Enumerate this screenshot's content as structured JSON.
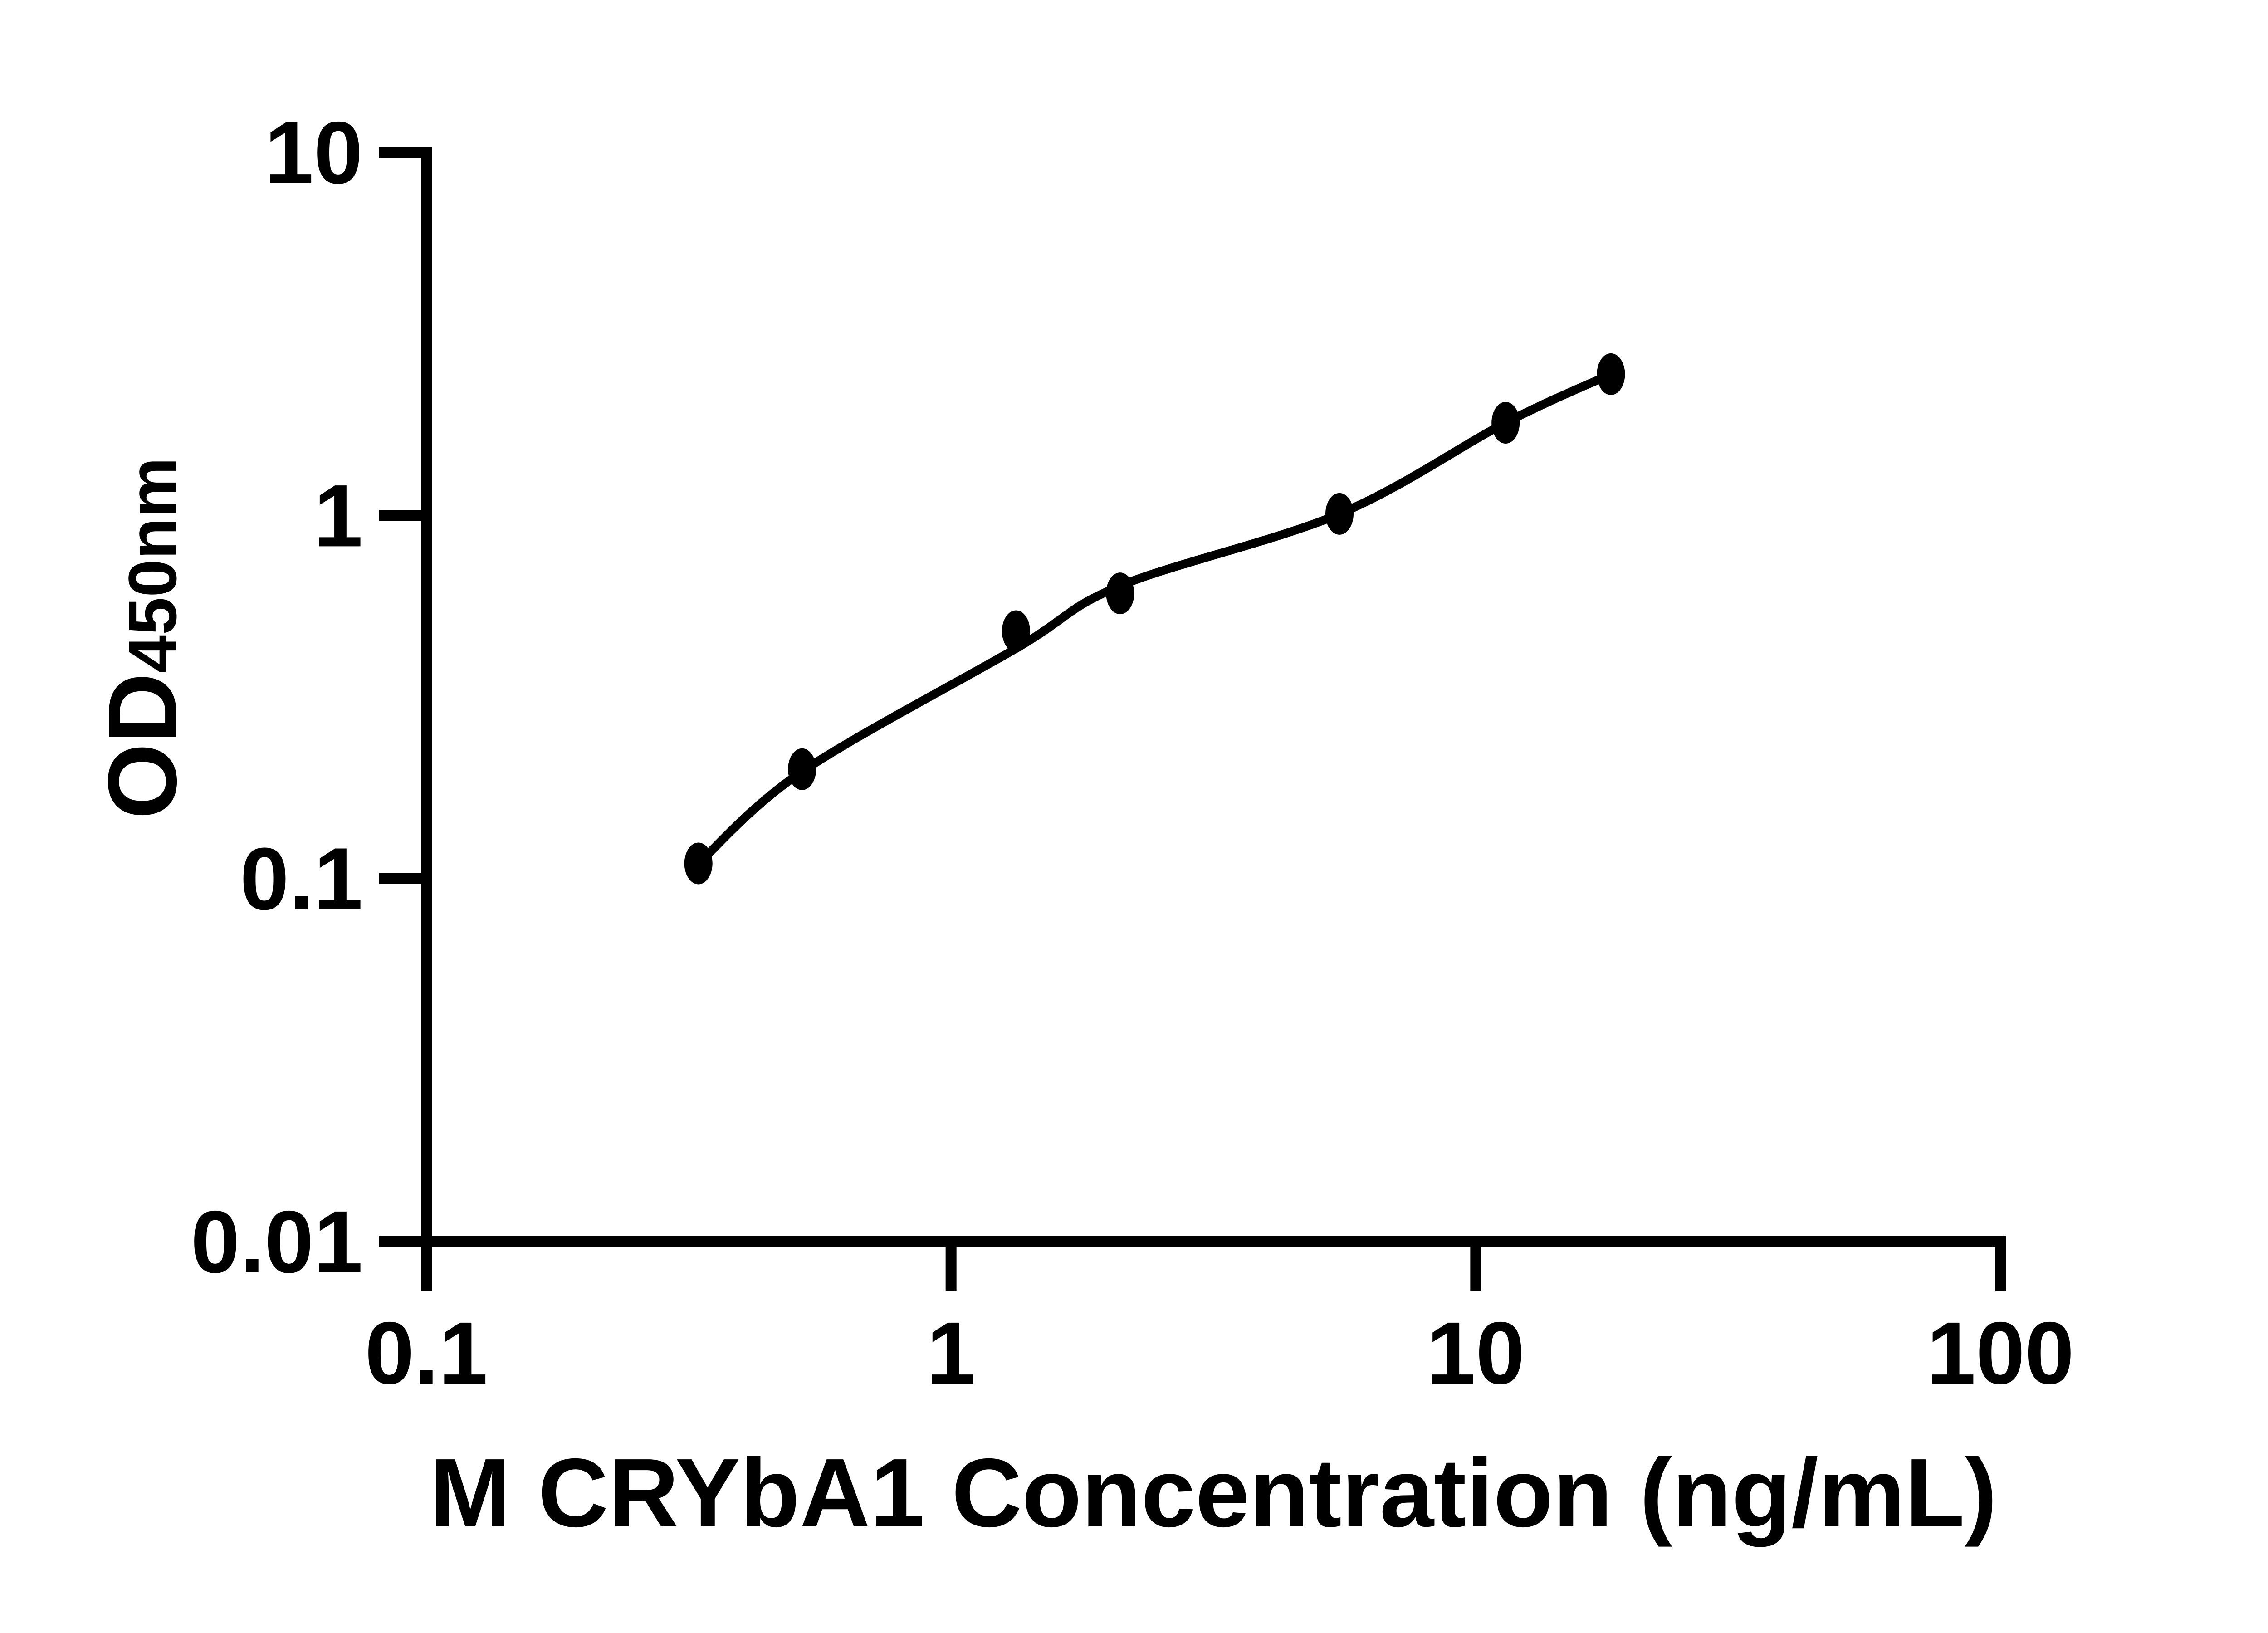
{
  "chart_data": {
    "type": "scatter",
    "title": "",
    "xlabel": "M CRYbA1 Concentration (ng/mL)",
    "ylabel_main": "OD",
    "ylabel_sub": "450nm",
    "x_scale": "log",
    "y_scale": "log",
    "xlim": [
      0.1,
      100
    ],
    "ylim": [
      0.01,
      10
    ],
    "x_ticks": [
      {
        "v": 0.1,
        "label": "0.1"
      },
      {
        "v": 1,
        "label": "1"
      },
      {
        "v": 10,
        "label": "10"
      },
      {
        "v": 100,
        "label": "100"
      }
    ],
    "y_ticks": [
      {
        "v": 10,
        "label": "10"
      },
      {
        "v": 1,
        "label": "1"
      },
      {
        "v": 0.1,
        "label": "0.1"
      },
      {
        "v": 0.01,
        "label": "0.01"
      }
    ],
    "grid": false,
    "legend": false,
    "colors": {
      "marker": "#000000",
      "line": "#000000",
      "axis": "#000000",
      "background": "#ffffff"
    },
    "series": [
      {
        "points": [
          {
            "x": 0.33,
            "y": 0.11
          },
          {
            "x": 0.52,
            "y": 0.2
          },
          {
            "x": 1.33,
            "y": 0.48
          },
          {
            "x": 2.1,
            "y": 0.61
          },
          {
            "x": 5.5,
            "y": 1.01
          },
          {
            "x": 11.4,
            "y": 1.8
          },
          {
            "x": 18.1,
            "y": 2.45
          }
        ]
      }
    ],
    "fit_curve_points": [
      [
        0.33,
        0.11
      ],
      [
        0.52,
        0.197
      ],
      [
        1.33,
        0.43
      ],
      [
        2.1,
        0.64
      ],
      [
        5.5,
        1.01
      ],
      [
        11.4,
        1.8
      ],
      [
        18.1,
        2.45
      ]
    ]
  }
}
